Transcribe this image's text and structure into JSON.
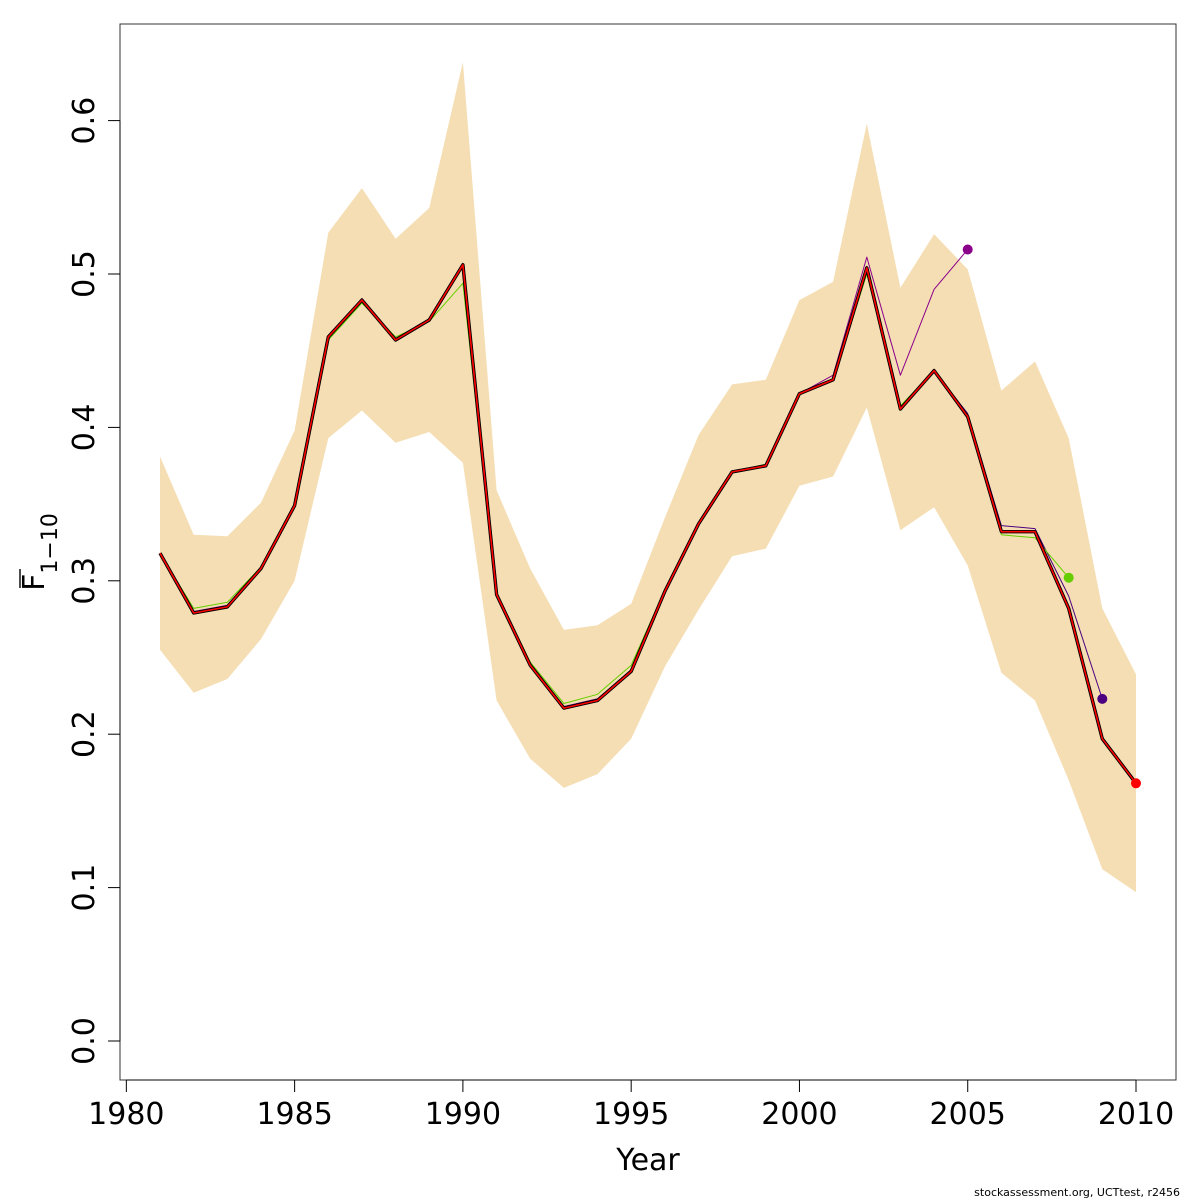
{
  "chart_data": {
    "type": "line",
    "xlabel": "Year",
    "ylabel": {
      "main": "F",
      "subscript": "1−10",
      "overline": true
    },
    "xlim": [
      1981,
      2010
    ],
    "ylim": [
      0,
      0.65
    ],
    "x_ticks": [
      1980,
      1985,
      1990,
      1995,
      2000,
      2005,
      2010
    ],
    "y_ticks": [
      0.0,
      0.1,
      0.2,
      0.3,
      0.4,
      0.5,
      0.6
    ],
    "x_tick_labels": [
      "1980",
      "1985",
      "1990",
      "1995",
      "2000",
      "2005",
      "2010"
    ],
    "y_tick_labels": [
      "0.0",
      "0.1",
      "0.2",
      "0.3",
      "0.4",
      "0.5",
      "0.6"
    ],
    "confidence_band": {
      "color": "#f5deb3",
      "years": [
        1981,
        1982,
        1983,
        1984,
        1985,
        1986,
        1987,
        1988,
        1989,
        1990,
        1991,
        1992,
        1993,
        1994,
        1995,
        1996,
        1997,
        1998,
        1999,
        2000,
        2001,
        2002,
        2003,
        2004,
        2005,
        2006,
        2007,
        2008,
        2009,
        2010
      ],
      "lower": [
        0.255,
        0.227,
        0.236,
        0.262,
        0.3,
        0.393,
        0.411,
        0.39,
        0.397,
        0.377,
        0.222,
        0.184,
        0.165,
        0.174,
        0.197,
        0.244,
        0.281,
        0.316,
        0.321,
        0.362,
        0.368,
        0.413,
        0.333,
        0.348,
        0.31,
        0.24,
        0.222,
        0.17,
        0.112,
        0.097
      ],
      "upper": [
        0.381,
        0.33,
        0.329,
        0.351,
        0.398,
        0.527,
        0.556,
        0.523,
        0.543,
        0.638,
        0.359,
        0.308,
        0.268,
        0.271,
        0.285,
        0.341,
        0.395,
        0.428,
        0.431,
        0.483,
        0.495,
        0.598,
        0.491,
        0.526,
        0.503,
        0.424,
        0.443,
        0.393,
        0.282,
        0.239
      ]
    },
    "series": [
      {
        "color": "#8b008b",
        "line_width": 1,
        "end_marker": true,
        "x": [
          1981,
          1982,
          1983,
          1984,
          1985,
          1986,
          1987,
          1988,
          1989,
          1990,
          1991,
          1992,
          1993,
          1994,
          1995,
          1996,
          1997,
          1998,
          1999,
          2000,
          2001,
          2002,
          2003,
          2004,
          2005
        ],
        "values": [
          0.318,
          0.28,
          0.284,
          0.309,
          0.35,
          0.46,
          0.484,
          0.458,
          0.47,
          0.507,
          0.292,
          0.245,
          0.218,
          0.223,
          0.242,
          0.293,
          0.337,
          0.371,
          0.376,
          0.422,
          0.434,
          0.511,
          0.434,
          0.49,
          0.516
        ]
      },
      {
        "color": "#4b0082",
        "line_width": 1,
        "end_marker": true,
        "x": [
          1981,
          1982,
          1983,
          1984,
          1985,
          1986,
          1987,
          1988,
          1989,
          1990,
          1991,
          1992,
          1993,
          1994,
          1995,
          1996,
          1997,
          1998,
          1999,
          2000,
          2001,
          2002,
          2003,
          2004,
          2005,
          2006,
          2007,
          2008,
          2009
        ],
        "values": [
          0.318,
          0.28,
          0.283,
          0.308,
          0.349,
          0.459,
          0.483,
          0.457,
          0.47,
          0.506,
          0.291,
          0.245,
          0.218,
          0.223,
          0.242,
          0.293,
          0.337,
          0.371,
          0.376,
          0.422,
          0.431,
          0.505,
          0.413,
          0.437,
          0.409,
          0.336,
          0.334,
          0.29,
          0.223
        ]
      },
      {
        "color": "#66cd00",
        "line_width": 1,
        "end_marker": true,
        "x": [
          1981,
          1982,
          1983,
          1984,
          1985,
          1986,
          1987,
          1988,
          1989,
          1990,
          1991,
          1992,
          1993,
          1994,
          1995,
          1996,
          1997,
          1998,
          1999,
          2000,
          2001,
          2002,
          2003,
          2004,
          2005,
          2006,
          2007,
          2008
        ],
        "values": [
          0.318,
          0.282,
          0.286,
          0.309,
          0.349,
          0.457,
          0.481,
          0.459,
          0.469,
          0.494,
          0.292,
          0.247,
          0.22,
          0.226,
          0.245,
          0.294,
          0.337,
          0.371,
          0.376,
          0.422,
          0.431,
          0.5,
          0.414,
          0.437,
          0.407,
          0.33,
          0.328,
          0.302
        ]
      },
      {
        "color": "#000000",
        "line_width": 3.4,
        "end_marker": false,
        "x": [
          1981,
          1982,
          1983,
          1984,
          1985,
          1986,
          1987,
          1988,
          1989,
          1990,
          1991,
          1992,
          1993,
          1994,
          1995,
          1996,
          1997,
          1998,
          1999,
          2000,
          2001,
          2002,
          2003,
          2004,
          2005,
          2006,
          2007,
          2008,
          2009,
          2010
        ],
        "values": [
          0.318,
          0.279,
          0.283,
          0.308,
          0.349,
          0.459,
          0.483,
          0.457,
          0.47,
          0.506,
          0.291,
          0.245,
          0.217,
          0.222,
          0.241,
          0.293,
          0.337,
          0.371,
          0.375,
          0.422,
          0.431,
          0.504,
          0.412,
          0.437,
          0.407,
          0.332,
          0.332,
          0.282,
          0.197,
          0.168
        ]
      },
      {
        "color": "#ff0000",
        "line_width": 1.6,
        "end_marker": true,
        "x": [
          1981,
          1982,
          1983,
          1984,
          1985,
          1986,
          1987,
          1988,
          1989,
          1990,
          1991,
          1992,
          1993,
          1994,
          1995,
          1996,
          1997,
          1998,
          1999,
          2000,
          2001,
          2002,
          2003,
          2004,
          2005,
          2006,
          2007,
          2008,
          2009,
          2010
        ],
        "values": [
          0.318,
          0.279,
          0.283,
          0.308,
          0.349,
          0.459,
          0.483,
          0.457,
          0.47,
          0.506,
          0.291,
          0.245,
          0.217,
          0.222,
          0.241,
          0.293,
          0.337,
          0.371,
          0.375,
          0.422,
          0.431,
          0.504,
          0.412,
          0.437,
          0.407,
          0.332,
          0.332,
          0.282,
          0.197,
          0.168
        ]
      }
    ]
  },
  "footer": "stockassessment.org, UCTtest, r2456"
}
